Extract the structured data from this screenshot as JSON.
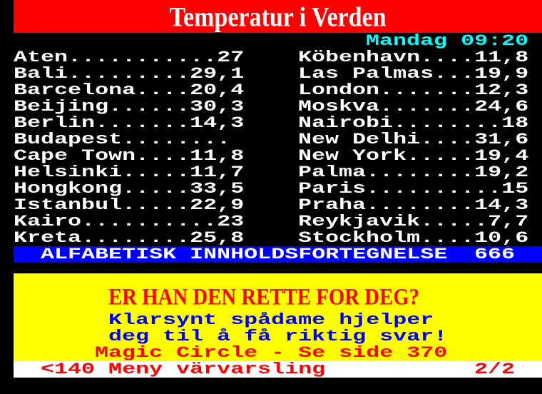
{
  "header": {
    "title": "Temperatur i Verden",
    "datetime": "Mandag 09:20"
  },
  "cities_left": [
    {
      "name": "Aten",
      "value": "27"
    },
    {
      "name": "Bali",
      "value": "29,1"
    },
    {
      "name": "Barcelona",
      "value": "20,4"
    },
    {
      "name": "Beijing",
      "value": "30,3"
    },
    {
      "name": "Berlin",
      "value": "14,3"
    },
    {
      "name": "Budapest",
      "value": ""
    },
    {
      "name": "Cape Town",
      "value": "11,8"
    },
    {
      "name": "Helsinki",
      "value": "11,7"
    },
    {
      "name": "Hongkong",
      "value": "33,5"
    },
    {
      "name": "Istanbul",
      "value": "22,9"
    },
    {
      "name": "Kairo",
      "value": "23"
    },
    {
      "name": "Kreta",
      "value": "25,8"
    }
  ],
  "cities_right": [
    {
      "name": "Köbenhavn",
      "value": "11,8"
    },
    {
      "name": "Las Palmas",
      "value": "19,9"
    },
    {
      "name": "London",
      "value": "12,3"
    },
    {
      "name": "Moskva",
      "value": "24,6"
    },
    {
      "name": "Nairobi",
      "value": "18"
    },
    {
      "name": "New Delhi",
      "value": "31,6"
    },
    {
      "name": "New York",
      "value": "19,4"
    },
    {
      "name": "Palma",
      "value": "19,2"
    },
    {
      "name": "Paris",
      "value": "15"
    },
    {
      "name": "Praha",
      "value": "14,3"
    },
    {
      "name": "Reykjavik",
      "value": "7,7"
    },
    {
      "name": "Stockholm",
      "value": "10,6"
    }
  ],
  "index_bar": {
    "label": "ALFABETISK INNHOLDSFORTEGNELSE",
    "page": "666"
  },
  "ad": {
    "headline": "ER HAN DEN RETTE FOR DEG?",
    "line1": "Klarsynt spådame hjelper",
    "line2": "deg til å få riktig svar!",
    "line3": "Magic Circle - Se side 370"
  },
  "footer": {
    "nav": "<140 Meny värvarsling",
    "page_counter": "2/2"
  },
  "colors": {
    "red": "#ff0000",
    "blue": "#0000ff",
    "yellow": "#ffff00",
    "cyan": "#00ffff",
    "white": "#ffffff",
    "black": "#000000"
  }
}
